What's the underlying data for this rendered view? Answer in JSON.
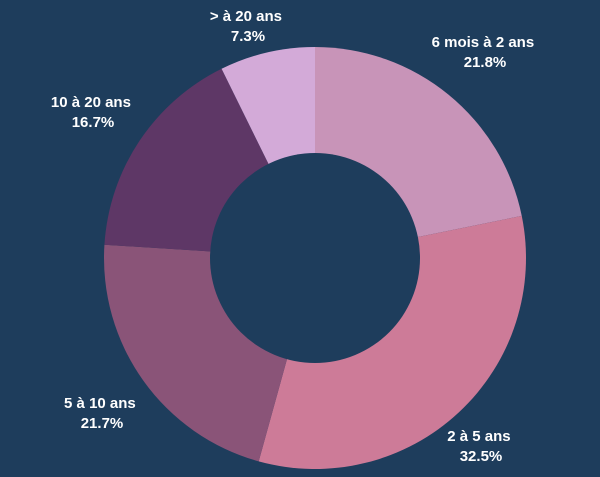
{
  "chart_data": {
    "type": "pie",
    "variant": "donut",
    "background": "#1e3d5c",
    "hole_color": "#1e3d5c",
    "start_angle_deg": 0,
    "direction": "clockwise",
    "slices": [
      {
        "label": "6 mois à 2 ans",
        "value": 21.8,
        "value_label": "21.8%",
        "color": "#c894b8"
      },
      {
        "label": "2 à 5 ans",
        "value": 32.5,
        "value_label": "32.5%",
        "color": "#cd7b98"
      },
      {
        "label": "5 à 10 ans",
        "value": 21.7,
        "value_label": "21.7%",
        "color": "#8a5478"
      },
      {
        "label": "10 à 20 ans",
        "value": 16.7,
        "value_label": "16.7%",
        "color": "#5e3766"
      },
      {
        "label": "> à 20 ans",
        "value": 7.3,
        "value_label": "7.3%",
        "color": "#d3aad8"
      }
    ]
  }
}
